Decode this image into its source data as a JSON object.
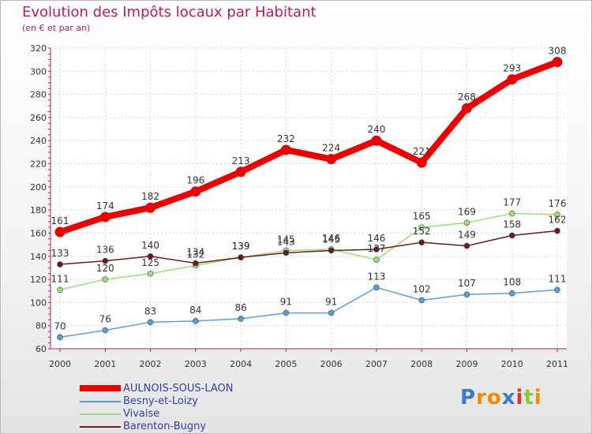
{
  "chart_data": {
    "type": "line",
    "title": "Evolution des Impôts locaux par Habitant",
    "subtitle": "(en € et par an)",
    "xlabel": "",
    "ylabel": "",
    "ylim": [
      60,
      320
    ],
    "yticks": [
      60,
      80,
      100,
      120,
      140,
      160,
      180,
      200,
      220,
      240,
      260,
      280,
      300,
      320
    ],
    "categories": [
      "2000",
      "2001",
      "2002",
      "2003",
      "2004",
      "2005",
      "2006",
      "2007",
      "2008",
      "2009",
      "2010",
      "2011"
    ],
    "grid": true,
    "series": [
      {
        "name": "AULNOIS-SOUS-LAON",
        "color": "#ee0000",
        "values": [
          161,
          174,
          182,
          196,
          213,
          232,
          224,
          240,
          221,
          268,
          293,
          308
        ]
      },
      {
        "name": "Besny-et-Loizy",
        "color": "#5a9fd4",
        "values": [
          70,
          76,
          83,
          84,
          86,
          91,
          91,
          113,
          102,
          107,
          108,
          111
        ]
      },
      {
        "name": "Vivaise",
        "color": "#99e07a",
        "values": [
          111,
          120,
          125,
          132,
          139,
          145,
          146,
          137,
          165,
          169,
          177,
          176
        ]
      },
      {
        "name": "Barenton-Bugny",
        "color": "#6b1a1a",
        "values": [
          133,
          136,
          140,
          134,
          139,
          143,
          145,
          146,
          152,
          149,
          158,
          162
        ]
      }
    ]
  },
  "labels": {
    "AULNOIS-SOUS-LAON": [
      "161",
      "174",
      "182",
      "196",
      "213",
      "232",
      "224",
      "240",
      "221",
      "268",
      "293",
      "308"
    ],
    "Besny-et-Loizy": [
      "70",
      "76",
      "83",
      "84",
      "86",
      "91",
      "91",
      "113",
      "102",
      "107",
      "108",
      "111"
    ],
    "Vivaise": [
      "111",
      "120",
      "125",
      "132",
      "139",
      "145",
      "146",
      "137",
      "165",
      "169",
      "177",
      "176"
    ],
    "Barenton-Bugny": [
      "133",
      "136",
      "140",
      "134",
      "139",
      "143",
      "145",
      "146",
      "152",
      "149",
      "158",
      "162"
    ]
  },
  "logo": {
    "text": "Proxiti",
    "letters": [
      "P",
      "r",
      "o",
      "x",
      "i",
      "t",
      "i"
    ],
    "letter_colors": [
      "#3a78c8",
      "#f08c00",
      "#f08c00",
      "#3a78c8",
      "#e03030",
      "#8cc63f",
      "#f08c00"
    ]
  }
}
